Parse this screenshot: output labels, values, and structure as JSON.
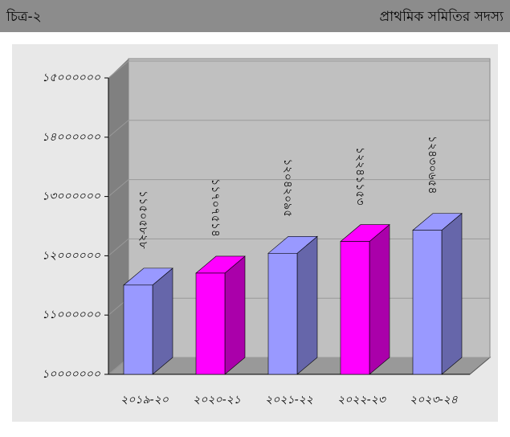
{
  "header": {
    "left": "চিত্র-২",
    "right": "প্রাথমিক সমিতির সদস্য"
  },
  "chart_data": {
    "type": "bar3d",
    "categories": [
      "২০১৯-২০",
      "২০২০-২১",
      "২০২১-২২",
      "২০২২-২৩",
      "২০২৩-২৪"
    ],
    "values": [
      11505828,
      11707514,
      12042095,
      12241153,
      12430654
    ],
    "value_labels": [
      "১১৫০৫৮২৮",
      "১১৭০৭৫১৪",
      "১২০৪২০৯৫",
      "১২২৪১১৫৩",
      "১২৪৩০৬৫৪"
    ],
    "colors": [
      "#9999ff",
      "#ff00ff",
      "#9999ff",
      "#ff00ff",
      "#9999ff"
    ],
    "side_colors": [
      "#6666aa",
      "#aa00aa",
      "#6666aa",
      "#aa00aa",
      "#6666aa"
    ],
    "ylim": [
      10000000,
      15000000
    ],
    "yticks": [
      {
        "value": 10000000,
        "label": "১০০০০০০০"
      },
      {
        "value": 11000000,
        "label": "১১০০০০০০"
      },
      {
        "value": 12000000,
        "label": "১২০০০০০০"
      },
      {
        "value": 13000000,
        "label": "১৩০০০০০০"
      },
      {
        "value": 14000000,
        "label": "১৪০০০০০০"
      },
      {
        "value": 15000000,
        "label": "১৫০০০০০০"
      }
    ],
    "grid": true
  }
}
